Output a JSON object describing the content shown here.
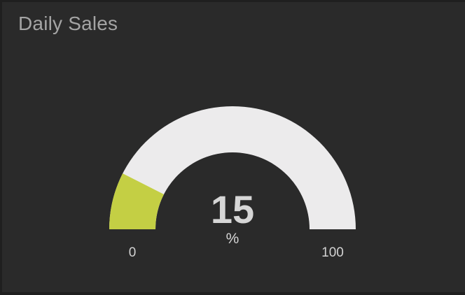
{
  "widget": {
    "title": "Daily Sales"
  },
  "gauge": {
    "value": 15,
    "value_label": "15",
    "units": "%",
    "min": 0,
    "max": 100,
    "min_label": "0",
    "max_label": "100",
    "colors": {
      "fill": "#c4cf44",
      "track": "#ecebec",
      "background": "#2a2a2a",
      "value_text": "#d6d6d6",
      "label_text": "#d2d2d2"
    }
  }
}
